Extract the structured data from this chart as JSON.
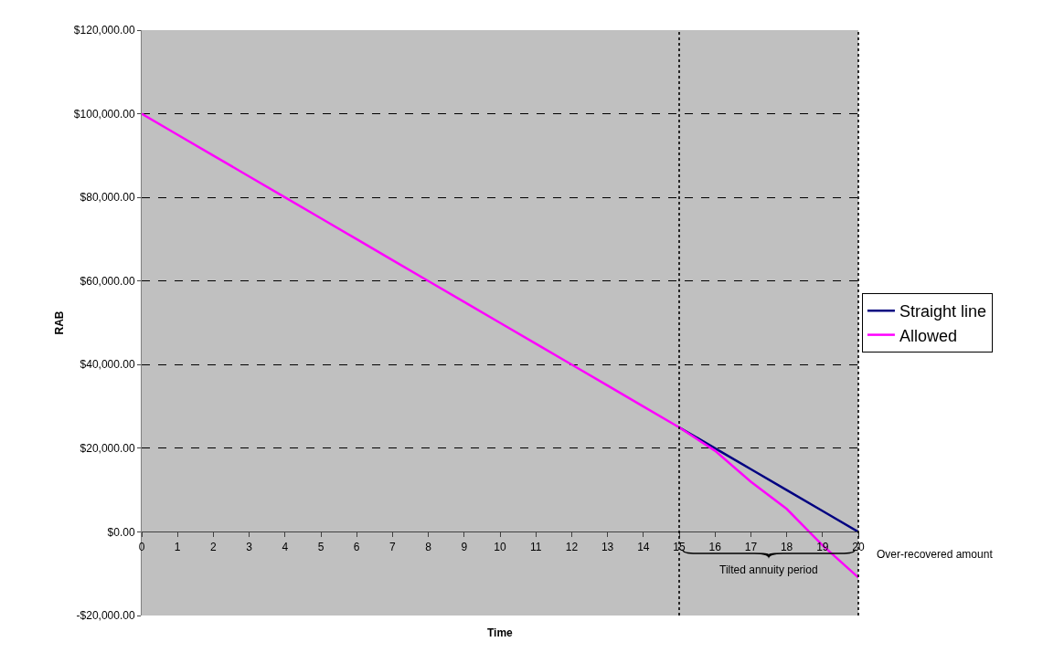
{
  "chart_data": {
    "type": "line",
    "xlabel": "Time",
    "ylabel": "RAB",
    "x": [
      0,
      1,
      2,
      3,
      4,
      5,
      6,
      7,
      8,
      9,
      10,
      11,
      12,
      13,
      14,
      15,
      16,
      17,
      18,
      19,
      20
    ],
    "series": [
      {
        "name": "Straight line",
        "color": "#000080",
        "values": [
          null,
          null,
          null,
          null,
          null,
          null,
          null,
          null,
          null,
          null,
          null,
          null,
          null,
          null,
          null,
          25000,
          20000,
          15000,
          10000,
          5000,
          0
        ]
      },
      {
        "name": "Allowed",
        "color": "#ff00ff",
        "values": [
          100000,
          95000,
          90000,
          85000,
          80000,
          75000,
          70000,
          65000,
          60000,
          55000,
          50000,
          45000,
          40000,
          35000,
          30000,
          25000,
          19400,
          12000,
          5500,
          -3200,
          -10900
        ]
      }
    ],
    "xlim": [
      0,
      20
    ],
    "xticks": [
      0,
      1,
      2,
      3,
      4,
      5,
      6,
      7,
      8,
      9,
      10,
      11,
      12,
      13,
      14,
      15,
      16,
      17,
      18,
      19,
      20
    ],
    "ylim": [
      -20000,
      120000
    ],
    "yticks": [
      {
        "value": -20000,
        "label": "-$20,000.00"
      },
      {
        "value": 0,
        "label": "$0.00"
      },
      {
        "value": 20000,
        "label": "$20,000.00"
      },
      {
        "value": 40000,
        "label": "$40,000.00"
      },
      {
        "value": 60000,
        "label": "$60,000.00"
      },
      {
        "value": 80000,
        "label": "$80,000.00"
      },
      {
        "value": 100000,
        "label": "$100,000.00"
      },
      {
        "value": 120000,
        "label": "$120,000.00"
      }
    ],
    "grid": "y",
    "legend": "right",
    "marker": "none",
    "line_style": "solid",
    "ref_lines": [
      {
        "axis": "x",
        "value": 15,
        "color": "#000000",
        "line_style": "dotted"
      },
      {
        "axis": "x",
        "value": 20,
        "color": "#000000",
        "line_style": "dotted"
      }
    ],
    "annotations": [
      "Tilted annuity period",
      "Over-recovered amount"
    ]
  }
}
